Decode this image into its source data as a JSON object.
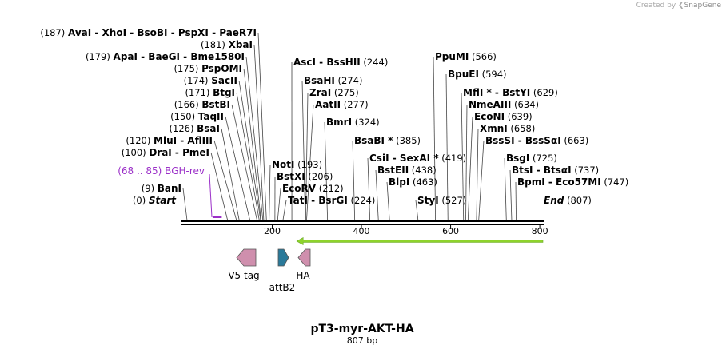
{
  "credit": {
    "prefix": "Created by",
    "brand": "SnapGene"
  },
  "map": {
    "name": "pT3-myr-AKT-HA",
    "length_label": "807 bp",
    "length": 807,
    "axis_ticks": [
      {
        "pos": 200,
        "label": "200"
      },
      {
        "pos": 400,
        "label": "400"
      },
      {
        "pos": 600,
        "label": "600"
      },
      {
        "pos": 800,
        "label": "800"
      }
    ]
  },
  "colors": {
    "arrow": "#8ed32c",
    "primer": "#9b30c8",
    "feature_pink": "#cf8fad",
    "feature_teal": "#2a7a9a"
  },
  "left_sites": [
    {
      "pre": "(187)",
      "name": "AvaI - XhoI - BsoBI - PspXI - PaeR7I",
      "pos": 187
    },
    {
      "pre": "(181)",
      "name": "XbaI",
      "pos": 181
    },
    {
      "pre": "(179)",
      "name": "ApaI - BaeGI - Bme1580I",
      "pos": 179
    },
    {
      "pre": "(175)",
      "name": "PspOMI",
      "pos": 175
    },
    {
      "pre": "(174)",
      "name": "SacII",
      "pos": 174
    },
    {
      "pre": "(171)",
      "name": "BtgI",
      "pos": 171
    },
    {
      "pre": "(166)",
      "name": "BstBI",
      "pos": 166
    },
    {
      "pre": "(150)",
      "name": "TaqII",
      "pos": 150
    },
    {
      "pre": "(126)",
      "name": "BsaI",
      "pos": 126
    },
    {
      "pre": "(120)",
      "name": "MluI - AflIII",
      "pos": 120
    },
    {
      "pre": "(100)",
      "name": "DraI - PmeI",
      "pos": 100
    },
    {
      "pre": "(9)",
      "name": "BanI",
      "pos": 9
    },
    {
      "pre": "(0)",
      "name": "Start",
      "pos": 0,
      "italic": true
    }
  ],
  "right_sites": [
    {
      "name": "AscI - BssHII",
      "post": "(244)",
      "pos": 244
    },
    {
      "name": "BsaHI",
      "post": "(274)",
      "pos": 274
    },
    {
      "name": "ZraI",
      "post": "(275)",
      "pos": 275
    },
    {
      "name": "AatII",
      "post": "(277)",
      "pos": 277
    },
    {
      "name": "BmrI",
      "post": "(324)",
      "pos": 324
    },
    {
      "name": "BsaBI *",
      "post": "(385)",
      "pos": 385
    },
    {
      "name": "NotI",
      "post": "(193)",
      "pos": 193
    },
    {
      "name": "BstXI",
      "post": "(206)",
      "pos": 206
    },
    {
      "name": "EcoRV",
      "post": "(212)",
      "pos": 212
    },
    {
      "name": "TatI - BsrGI",
      "post": "(224)",
      "pos": 224
    },
    {
      "name": "CsiI - SexAI *",
      "post": "(419)",
      "pos": 419
    },
    {
      "name": "BstEII",
      "post": "(438)",
      "pos": 438
    },
    {
      "name": "BlpI",
      "post": "(463)",
      "pos": 463
    },
    {
      "name": "StyI",
      "post": "(527)",
      "pos": 527
    },
    {
      "name": "PpuMI",
      "post": "(566)",
      "pos": 566
    },
    {
      "name": "BpuEI",
      "post": "(594)",
      "pos": 594
    },
    {
      "name": "MflI * - BstYI",
      "post": "(629)",
      "pos": 629
    },
    {
      "name": "NmeAIII",
      "post": "(634)",
      "pos": 634
    },
    {
      "name": "EcoNI",
      "post": "(639)",
      "pos": 639
    },
    {
      "name": "XmnI",
      "post": "(658)",
      "pos": 658
    },
    {
      "name": "BssSI - BssSαI",
      "post": "(663)",
      "pos": 663
    },
    {
      "name": "BsgI",
      "post": "(725)",
      "pos": 725
    },
    {
      "name": "BtsI - BtsαI",
      "post": "(737)",
      "pos": 737
    },
    {
      "name": "BpmI - Eco57MI",
      "post": "(747)",
      "pos": 747
    },
    {
      "name": "End",
      "post": "(807)",
      "pos": 807,
      "italic": true
    }
  ],
  "primer": {
    "range": "(68 .. 85)",
    "name": "BGH-rev",
    "start": 68,
    "end": 85
  },
  "main_arrow": {
    "start": 807,
    "end": 255,
    "direction": "left"
  },
  "features": [
    {
      "name": "V5 tag",
      "direction": "left",
      "color": "pink"
    },
    {
      "name": "attB2",
      "direction": "right",
      "color": "teal"
    },
    {
      "name": "HA",
      "direction": "left",
      "color": "pink"
    }
  ]
}
